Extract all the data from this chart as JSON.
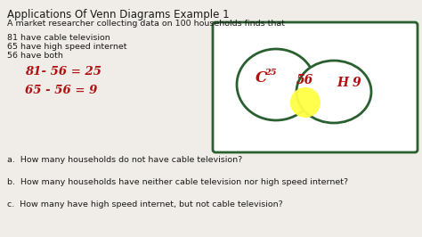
{
  "title": "Applications Of Venn Diagrams Example 1",
  "subtitle": "A market researcher collecting data on 100 households finds that",
  "bullets": [
    "81 have cable television",
    "65 have high speed internet",
    "56 have both"
  ],
  "eq1": "81- 56 = 25",
  "eq2": "65 - 56 = 9",
  "questions": [
    "a.  How many households do not have cable television?",
    "b.  How many households have neither cable television nor high speed internet?",
    "c.  How many have high speed internet, but not cable television?"
  ],
  "bg_color": "#f0ede8",
  "text_color": "#1a1a1a",
  "red_color": "#b01010",
  "green_color": "#2a6030",
  "yellow_color": "#ffff44"
}
